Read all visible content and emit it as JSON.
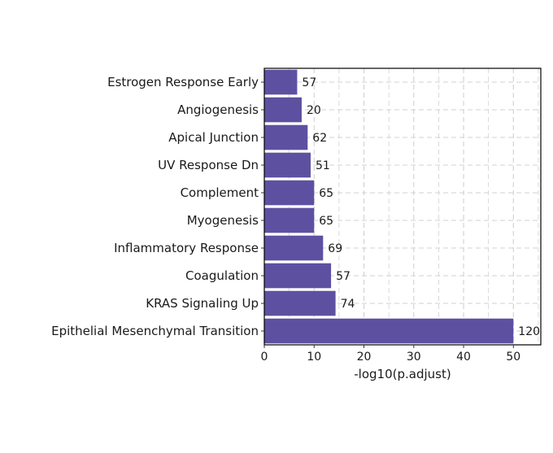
{
  "chart_data": {
    "type": "bar",
    "orientation": "horizontal",
    "title": "",
    "xlabel": "-log10(p.adjust)",
    "ylabel": "",
    "xlim": [
      0,
      55.5
    ],
    "xticks": [
      0,
      10,
      20,
      30,
      40,
      50
    ],
    "grid": true,
    "bar_color": "#5e50a1",
    "categories": [
      "Estrogen Response Early",
      "Angiogenesis",
      "Apical Junction",
      "UV Response Dn",
      "Complement",
      "Myogenesis",
      "Inflammatory Response",
      "Coagulation",
      "KRAS Signaling Up",
      "Epithelial Mesenchymal Transition"
    ],
    "values": [
      6.6,
      7.5,
      8.7,
      9.3,
      10.0,
      10.0,
      11.8,
      13.4,
      14.3,
      50.0
    ],
    "labels": [
      "57",
      "20",
      "62",
      "51",
      "65",
      "65",
      "69",
      "57",
      "74",
      "120"
    ]
  }
}
